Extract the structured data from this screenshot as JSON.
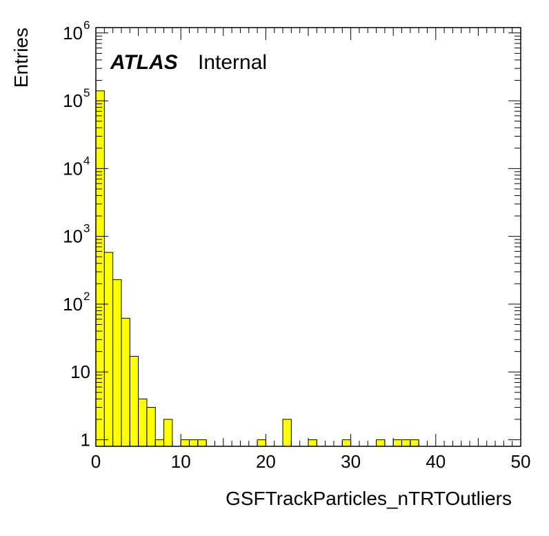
{
  "chart_data": {
    "type": "bar",
    "title": "",
    "xlabel": "GSFTrackParticles_nTRTOutliers",
    "ylabel": "Entries",
    "experiment_label": "ATLAS",
    "status_label": "Internal",
    "xlim": [
      0,
      50
    ],
    "ylim": [
      0.8,
      1200000
    ],
    "y_scale": "log",
    "bin_width": 1,
    "x_ticks": [
      "0",
      "10",
      "20",
      "30",
      "40",
      "50"
    ],
    "y_ticks": [
      {
        "mantissa": "1",
        "exponent": ""
      },
      {
        "mantissa": "10",
        "exponent": ""
      },
      {
        "mantissa": "10",
        "exponent": "2"
      },
      {
        "mantissa": "10",
        "exponent": "3"
      },
      {
        "mantissa": "10",
        "exponent": "4"
      },
      {
        "mantissa": "10",
        "exponent": "5"
      },
      {
        "mantissa": "10",
        "exponent": "6"
      }
    ],
    "bins": [
      {
        "x": 0,
        "value": 140000
      },
      {
        "x": 1,
        "value": 580
      },
      {
        "x": 2,
        "value": 230
      },
      {
        "x": 3,
        "value": 62
      },
      {
        "x": 4,
        "value": 17
      },
      {
        "x": 5,
        "value": 4
      },
      {
        "x": 6,
        "value": 3
      },
      {
        "x": 7,
        "value": 1
      },
      {
        "x": 8,
        "value": 2
      },
      {
        "x": 10,
        "value": 1
      },
      {
        "x": 11,
        "value": 1
      },
      {
        "x": 12,
        "value": 1
      },
      {
        "x": 19,
        "value": 1
      },
      {
        "x": 22,
        "value": 2
      },
      {
        "x": 25,
        "value": 1
      },
      {
        "x": 29,
        "value": 1
      },
      {
        "x": 33,
        "value": 1
      },
      {
        "x": 35,
        "value": 1
      },
      {
        "x": 36,
        "value": 1
      },
      {
        "x": 37,
        "value": 1
      }
    ],
    "fill_color": "#ffff00",
    "line_color": "#000000",
    "grid": false
  }
}
